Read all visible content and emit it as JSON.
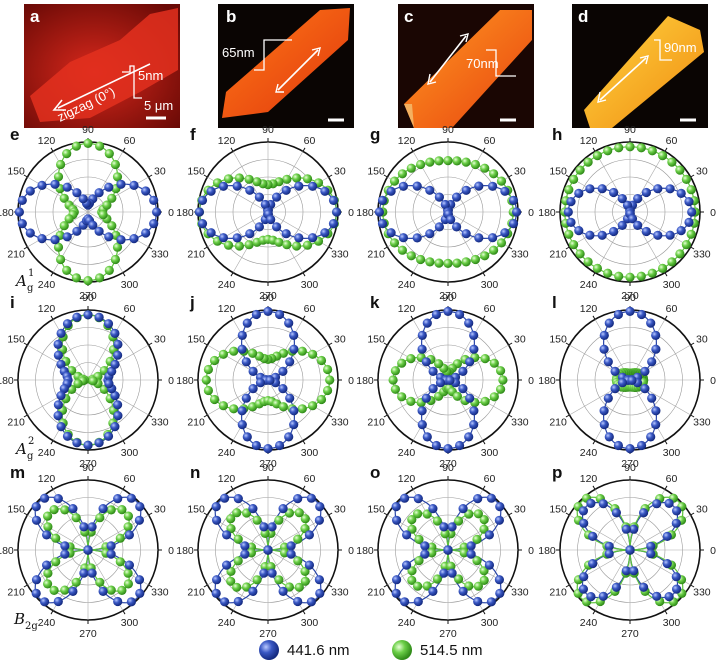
{
  "images": [
    {
      "label": "a",
      "annotations": [
        "zigzag (0°)",
        "5nm",
        "5 μm"
      ]
    },
    {
      "label": "b",
      "annotations": [
        "65nm"
      ]
    },
    {
      "label": "c",
      "annotations": [
        "70nm"
      ]
    },
    {
      "label": "d",
      "annotations": [
        "90nm"
      ]
    }
  ],
  "row_labels": [
    {
      "main": "A",
      "sub": "g",
      "sup": "1"
    },
    {
      "main": "A",
      "sub": "g",
      "sup": "2"
    },
    {
      "main": "B",
      "sub": "2g",
      "sup": ""
    }
  ],
  "legend": [
    {
      "label": "441.6 nm",
      "color": "#2a46a8"
    },
    {
      "label": "514.5 nm",
      "color": "#5cc23a"
    }
  ],
  "colors": {
    "blue": "#2a46a8",
    "green": "#5cc23a"
  },
  "chart_data": [
    {
      "label": "e",
      "type": "polar",
      "tick_labels": [
        "0",
        "30",
        "60",
        "90",
        "120",
        "150",
        "180",
        "210",
        "240",
        "270",
        "300",
        "330"
      ],
      "series": [
        {
          "legend": "441.6 nm",
          "model": "a+b*cos(2θ)",
          "params": [
            0.55,
            0.45
          ]
        },
        {
          "legend": "514.5 nm",
          "model": "a+b*cos(2θ)",
          "params": [
            0.6,
            -0.4
          ]
        }
      ]
    },
    {
      "label": "f",
      "type": "polar",
      "tick_labels": [
        "0",
        "30",
        "60",
        "90",
        "120",
        "150",
        "180",
        "210",
        "240",
        "270",
        "300",
        "330"
      ],
      "series": [
        {
          "legend": "441.6 nm",
          "model": "a+b*cos(2θ)",
          "params": [
            0.5,
            0.5
          ]
        },
        {
          "legend": "514.5 nm",
          "model": "a+b*cos(2θ)",
          "params": [
            0.7,
            0.3
          ]
        }
      ]
    },
    {
      "label": "g",
      "type": "polar",
      "tick_labels": [
        "0",
        "30",
        "60",
        "90",
        "120",
        "150",
        "180",
        "210",
        "240",
        "270",
        "300",
        "330"
      ],
      "series": [
        {
          "legend": "441.6 nm",
          "model": "a+b*cos(2θ)",
          "params": [
            0.5,
            0.5
          ]
        },
        {
          "legend": "514.5 nm",
          "model": "a+b*cos(2θ)",
          "params": [
            0.85,
            0.1
          ]
        }
      ]
    },
    {
      "label": "h",
      "type": "polar",
      "tick_labels": [
        "0",
        "30",
        "60",
        "90",
        "120",
        "150",
        "180",
        "210",
        "240",
        "270",
        "300",
        "330"
      ],
      "series": [
        {
          "legend": "441.6 nm",
          "model": "a+b*cos(2θ)",
          "params": [
            0.45,
            0.45
          ]
        },
        {
          "legend": "514.5 nm",
          "model": "a+b*cos(2θ)",
          "params": [
            0.95,
            0.0
          ]
        }
      ]
    },
    {
      "label": "i",
      "type": "polar",
      "tick_labels": [
        "0",
        "30",
        "60",
        "90",
        "120",
        "150",
        "180",
        "210",
        "240",
        "270",
        "300",
        "330"
      ],
      "series": [
        {
          "legend": "441.6 nm",
          "model": "a+b*cos(2θ)",
          "params": [
            0.62,
            -0.33
          ]
        },
        {
          "legend": "514.5 nm",
          "model": "a+b*cos(2θ)",
          "params": [
            0.5,
            -0.45
          ]
        }
      ]
    },
    {
      "label": "j",
      "type": "polar",
      "tick_labels": [
        "0",
        "30",
        "60",
        "90",
        "120",
        "150",
        "180",
        "210",
        "240",
        "270",
        "300",
        "330"
      ],
      "series": [
        {
          "legend": "441.6 nm",
          "model": "a+b*cos(2θ)",
          "params": [
            0.5,
            -0.5
          ]
        },
        {
          "legend": "514.5 nm",
          "model": "a+b*cos(2θ)",
          "params": [
            0.6,
            0.3
          ]
        }
      ]
    },
    {
      "label": "k",
      "type": "polar",
      "tick_labels": [
        "0",
        "30",
        "60",
        "90",
        "120",
        "150",
        "180",
        "210",
        "240",
        "270",
        "300",
        "330"
      ],
      "series": [
        {
          "legend": "441.6 nm",
          "model": "a+b*cos(2θ)",
          "params": [
            0.5,
            -0.5
          ]
        },
        {
          "legend": "514.5 nm",
          "model": "a+b*cos(2θ)",
          "params": [
            0.45,
            0.35
          ]
        }
      ]
    },
    {
      "label": "l",
      "type": "polar",
      "tick_labels": [
        "0",
        "30",
        "60",
        "90",
        "120",
        "150",
        "180",
        "210",
        "240",
        "270",
        "300",
        "330"
      ],
      "series": [
        {
          "legend": "441.6 nm",
          "model": "a+b*cos(2θ)",
          "params": [
            0.5,
            -0.5
          ]
        },
        {
          "legend": "514.5 nm",
          "model": "a+b*cos(2θ)",
          "params": [
            0.15,
            0.05
          ]
        }
      ]
    },
    {
      "label": "m",
      "type": "polar",
      "tick_labels": [
        "0",
        "30",
        "60",
        "90",
        "120",
        "150",
        "180",
        "210",
        "240",
        "270",
        "300",
        "330"
      ],
      "series": [
        {
          "legend": "441.6 nm",
          "model": "a*|sin(2θ)|",
          "params": [
            1.0
          ]
        },
        {
          "legend": "514.5 nm",
          "model": "a*|sin(2θ)|",
          "params": [
            0.78
          ]
        }
      ]
    },
    {
      "label": "n",
      "type": "polar",
      "tick_labels": [
        "0",
        "30",
        "60",
        "90",
        "120",
        "150",
        "180",
        "210",
        "240",
        "270",
        "300",
        "330"
      ],
      "series": [
        {
          "legend": "441.6 nm",
          "model": "a*|sin(2θ)|",
          "params": [
            1.0
          ]
        },
        {
          "legend": "514.5 nm",
          "model": "a*|sin(2θ)|",
          "params": [
            0.72
          ]
        }
      ]
    },
    {
      "label": "o",
      "type": "polar",
      "tick_labels": [
        "0",
        "30",
        "60",
        "90",
        "120",
        "150",
        "180",
        "210",
        "240",
        "270",
        "300",
        "330"
      ],
      "series": [
        {
          "legend": "441.6 nm",
          "model": "a*|sin(2θ)|",
          "params": [
            1.0
          ]
        },
        {
          "legend": "514.5 nm",
          "model": "a*|sin(2θ)|",
          "params": [
            0.7
          ]
        }
      ]
    },
    {
      "label": "p",
      "type": "polar",
      "tick_labels": [
        "0",
        "30",
        "60",
        "90",
        "120",
        "150",
        "180",
        "210",
        "240",
        "270",
        "300",
        "330"
      ],
      "series": [
        {
          "legend": "441.6 nm",
          "model": "a*|sin(2θ)|",
          "params": [
            0.9
          ]
        },
        {
          "legend": "514.5 nm",
          "model": "a*|sin(2θ)|",
          "params": [
            1.0
          ]
        }
      ]
    }
  ]
}
